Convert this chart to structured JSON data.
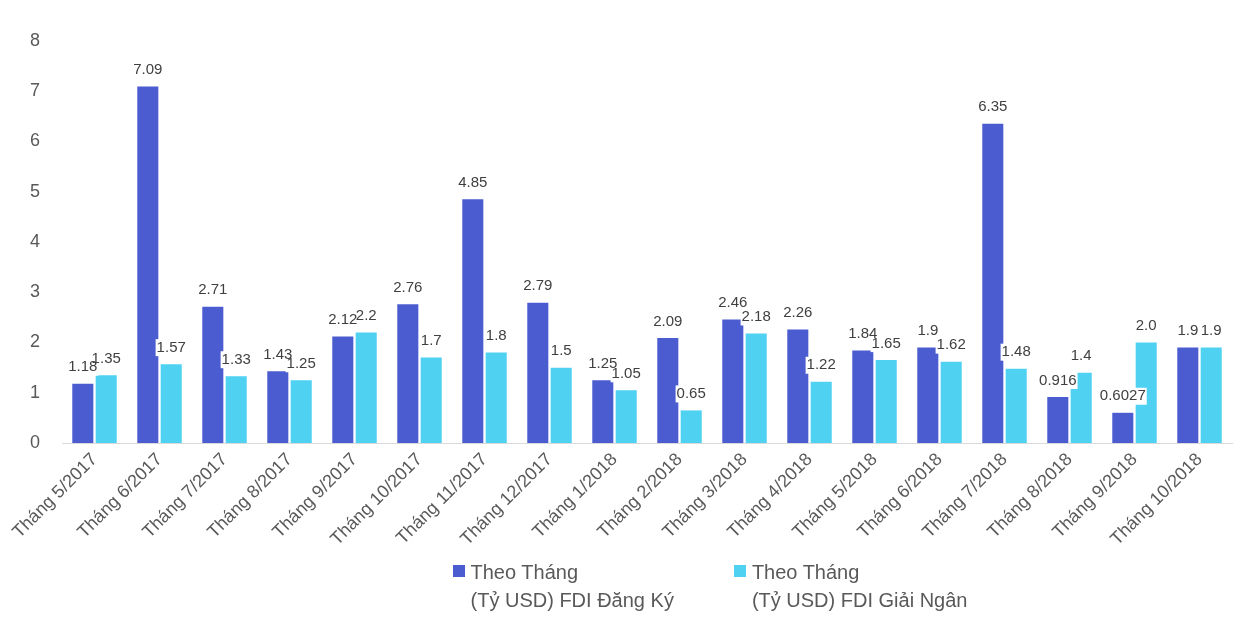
{
  "chart_data": {
    "type": "bar",
    "categories": [
      "Tháng 5/2017",
      "Tháng 6/2017",
      "Tháng 7/2017",
      "Tháng 8/2017",
      "Tháng 9/2017",
      "Tháng 10/2017",
      "Tháng 11/2017",
      "Tháng 12/2017",
      "Tháng 1/2018",
      "Tháng 2/2018",
      "Tháng 3/2018",
      "Tháng 4/2018",
      "Tháng 5/2018",
      "Tháng 6/2018",
      "Tháng 7/2018",
      "Tháng 8/2018",
      "Tháng 9/2018",
      "Tháng 10/2018"
    ],
    "series": [
      {
        "name": "Theo Tháng\n(Tỷ USD) FDI Đăng Ký",
        "color": "#4a5ccf",
        "values": [
          1.18,
          7.09,
          2.71,
          1.43,
          2.12,
          2.76,
          4.85,
          2.79,
          1.25,
          2.09,
          2.46,
          2.26,
          1.84,
          1.9,
          6.35,
          0.916,
          0.6027,
          1.9
        ],
        "value_labels": [
          "1.18",
          "7.09",
          "2.71",
          "1.43",
          "2.12",
          "2.76",
          "4.85",
          "2.79",
          "1.25",
          "2.09",
          "2.46",
          "2.26",
          "1.84",
          "1.9",
          "6.35",
          "0.916",
          "0.6027",
          "1.9"
        ]
      },
      {
        "name": "Theo Tháng\n(Tỷ USD) FDI Giải Ngân",
        "color": "#4fd1f2",
        "values": [
          1.35,
          1.57,
          1.33,
          1.25,
          2.2,
          1.7,
          1.8,
          1.5,
          1.05,
          0.65,
          2.18,
          1.22,
          1.65,
          1.62,
          1.48,
          1.4,
          2.0,
          1.9
        ],
        "value_labels": [
          "1.35",
          "1.57",
          "1.33",
          "1.25",
          "2.2",
          "1.7",
          "1.8",
          "1.5",
          "1.05",
          "0.65",
          "2.18",
          "1.22",
          "1.65",
          "1.62",
          "1.48",
          "1.4",
          "2.0",
          "1.9"
        ]
      }
    ],
    "ylim": [
      0,
      8
    ],
    "yticks": [
      0,
      1,
      2,
      3,
      4,
      5,
      6,
      7,
      8
    ],
    "grid": false,
    "legend": "bottom"
  }
}
